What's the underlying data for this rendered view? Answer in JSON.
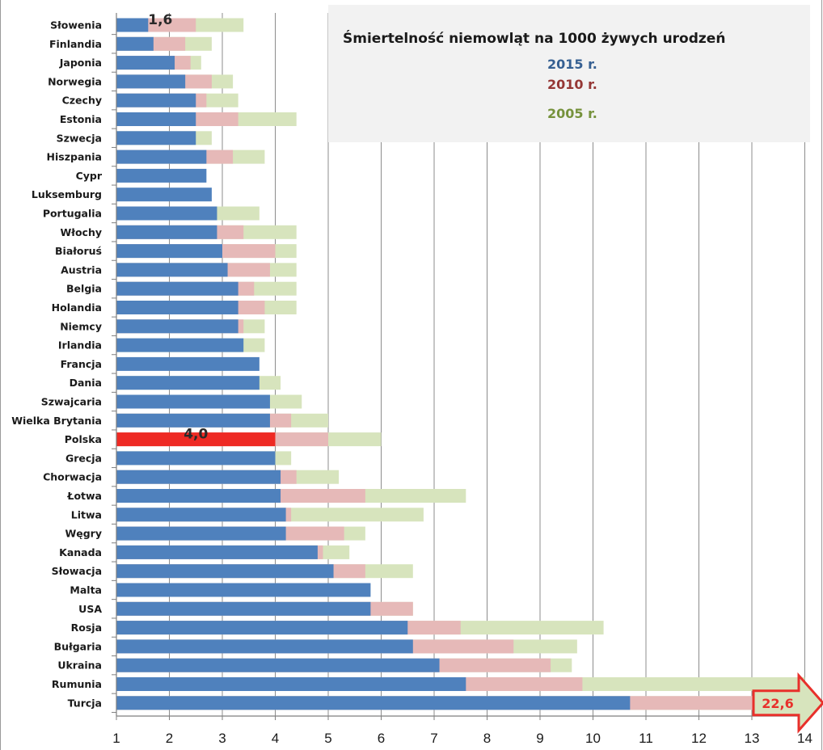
{
  "chart_data": {
    "type": "bar",
    "orientation": "horizontal",
    "stacked": "overlay",
    "xlim": [
      1,
      14
    ],
    "x_ticks": [
      "1",
      "2",
      "3",
      "4",
      "5",
      "6",
      "7",
      "8",
      "9",
      "10",
      "11",
      "12",
      "13",
      "14"
    ],
    "grid": true,
    "legend_title": "Śmiertelność niemowląt  na 1000 żywych urodzeń",
    "legend_position": "top-right",
    "categories": [
      "Słowenia",
      "Finlandia",
      "Japonia",
      "Norwegia",
      "Czechy",
      "Estonia",
      "Szwecja",
      "Hiszpania",
      "Cypr",
      "Luksemburg",
      "Portugalia",
      "Włochy",
      "Białoruś",
      "Austria",
      "Belgia",
      "Holandia",
      "Niemcy",
      "Irlandia",
      "Francja",
      "Dania",
      "Szwajcaria",
      "Wielka Brytania",
      "Polska",
      "Grecja",
      "Chorwacja",
      "Łotwa",
      "Litwa",
      "Węgry",
      "Kanada",
      "Słowacja",
      "Malta",
      "USA",
      "Rosja",
      "Bułgaria",
      "Ukraina",
      "Rumunia",
      "Turcja"
    ],
    "series": [
      {
        "name": "2005 r.",
        "color": "#d7e4bd",
        "label_color": "#76923c",
        "values": [
          3.4,
          2.8,
          2.6,
          3.2,
          3.3,
          4.4,
          2.8,
          3.8,
          null,
          null,
          3.7,
          4.4,
          4.4,
          4.4,
          4.4,
          4.4,
          3.8,
          3.8,
          null,
          4.1,
          4.5,
          5.0,
          6.0,
          4.3,
          5.2,
          7.6,
          6.8,
          5.7,
          5.4,
          6.6,
          null,
          6.6,
          10.2,
          9.7,
          9.6,
          14.0,
          14.0
        ]
      },
      {
        "name": "2010 r.",
        "color": "#e6b9b8",
        "label_color": "#953735",
        "values": [
          2.5,
          2.3,
          2.4,
          2.8,
          2.7,
          3.3,
          null,
          3.2,
          null,
          null,
          null,
          3.4,
          4.0,
          3.9,
          3.6,
          3.8,
          3.4,
          null,
          null,
          null,
          null,
          4.3,
          5.0,
          null,
          4.4,
          5.7,
          4.3,
          5.3,
          4.9,
          5.7,
          null,
          6.6,
          7.5,
          8.5,
          9.2,
          9.8,
          14.0
        ]
      },
      {
        "name": "2015 r.",
        "color": "#4f81bd",
        "label_color": "#366092",
        "values": [
          1.6,
          1.7,
          2.1,
          2.3,
          2.5,
          2.5,
          2.5,
          2.7,
          2.7,
          2.8,
          2.9,
          2.9,
          3.0,
          3.1,
          3.3,
          3.3,
          3.3,
          3.4,
          3.7,
          3.7,
          3.9,
          3.9,
          4.0,
          4.0,
          4.1,
          4.1,
          4.2,
          4.2,
          4.8,
          5.1,
          5.8,
          5.8,
          6.5,
          6.6,
          7.1,
          7.6,
          10.7
        ]
      }
    ],
    "highlight": {
      "category": "Polska",
      "color": "#ee2a24"
    },
    "data_labels": [
      {
        "category": "Słowenia",
        "text": "1,6"
      },
      {
        "category": "Polska",
        "text": "4,0"
      }
    ],
    "overflow_callout": {
      "category": "Turcja",
      "text": "22,6"
    }
  }
}
